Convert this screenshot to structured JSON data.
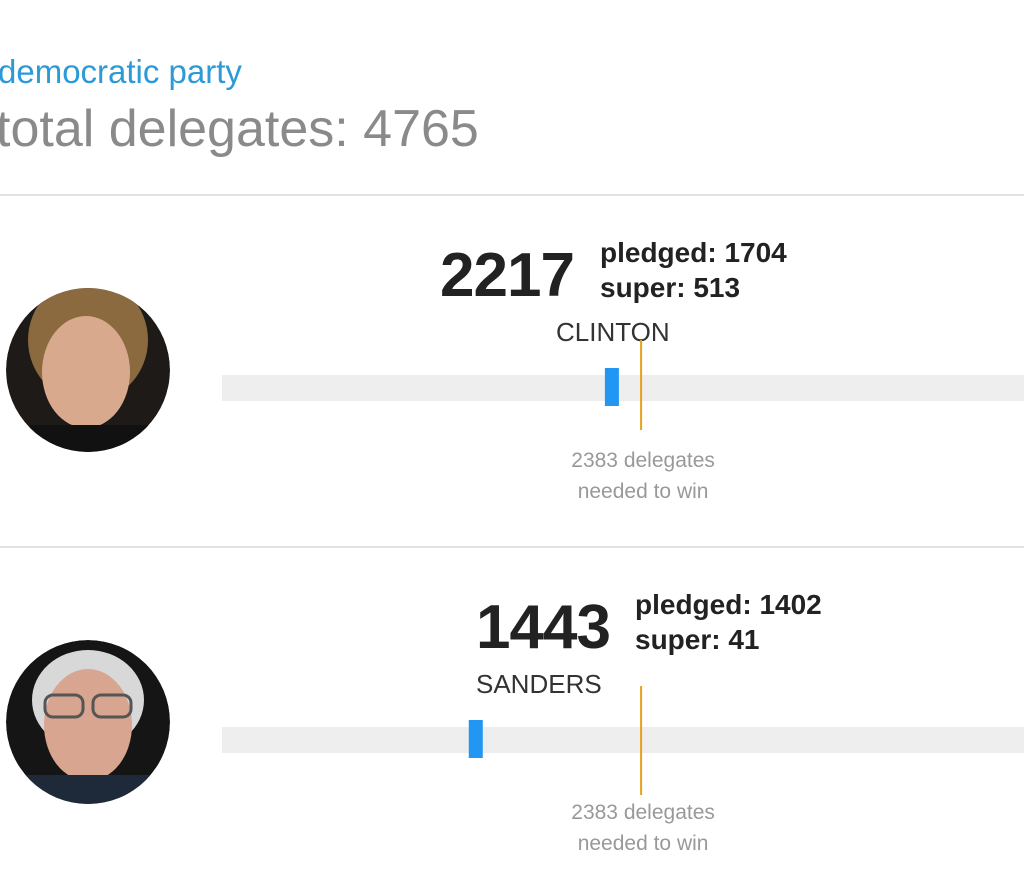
{
  "header": {
    "party": "democratic party",
    "total_label": "total delegates:",
    "total": 4765
  },
  "candidates": [
    {
      "name": "CLINTON",
      "delegates": 2217,
      "pledged_label": "pledged:",
      "pledged": 1704,
      "super_label": "super:",
      "super": 513,
      "needed": 2383,
      "needed_unit": "delegates",
      "needed_note": "needed to win"
    },
    {
      "name": "SANDERS",
      "delegates": 1443,
      "pledged_label": "pledged:",
      "pledged": 1402,
      "super_label": "super:",
      "super": 41,
      "needed": 2383,
      "needed_unit": "delegates",
      "needed_note": "needed to win"
    }
  ]
}
